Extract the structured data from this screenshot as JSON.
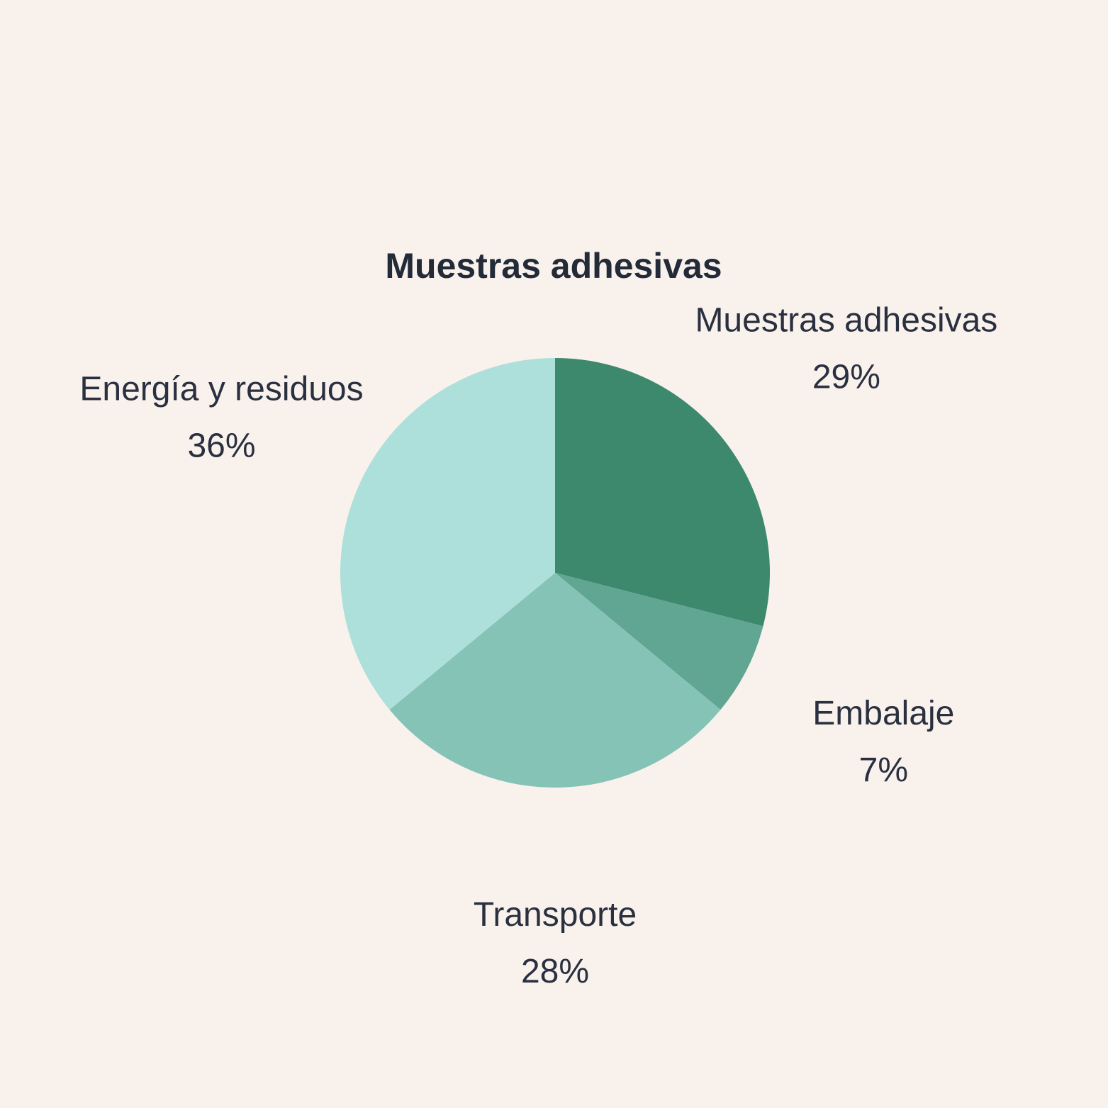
{
  "chart_data": {
    "type": "pie",
    "title": "Muestras adhesivas",
    "start_angle_deg": 0,
    "direction": "clockwise",
    "slices": [
      {
        "label": "Muestras adhesivas",
        "value": 29,
        "value_text": "29%",
        "color": "#3d896e"
      },
      {
        "label": "Embalaje",
        "value": 7,
        "value_text": "7%",
        "color": "#60a693"
      },
      {
        "label": "Transporte",
        "value": 28,
        "value_text": "28%",
        "color": "#86c3b7"
      },
      {
        "label": "Energía y residuos",
        "value": 36,
        "value_text": "36%",
        "color": "#aee0db"
      }
    ],
    "background": "#f9f2ec"
  }
}
